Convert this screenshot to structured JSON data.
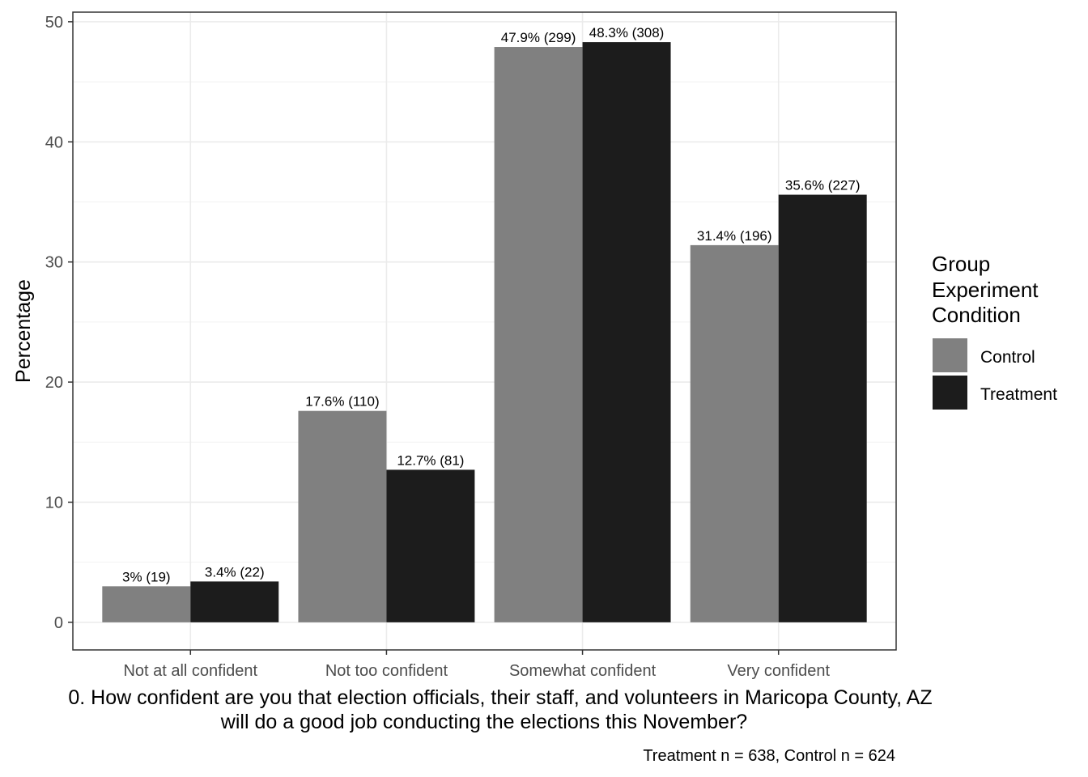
{
  "chart_data": {
    "type": "bar",
    "categories": [
      "Not at all confident",
      "Not too confident",
      "Somewhat confident",
      "Very confident"
    ],
    "series": [
      {
        "name": "Control",
        "color": "#808080",
        "values": [
          3.0,
          17.6,
          47.9,
          31.4
        ],
        "labels": [
          "3% (19)",
          "17.6% (110)",
          "47.9% (299)",
          "31.4% (196)"
        ]
      },
      {
        "name": "Treatment",
        "color": "#1c1c1c",
        "values": [
          3.4,
          12.7,
          48.3,
          35.6
        ],
        "labels": [
          "3.4% (22)",
          "12.7% (81)",
          "48.3% (308)",
          "35.6% (227)"
        ]
      }
    ],
    "title": "",
    "xlabel_lines": [
      "0. How confident are you that election officials, their staff, and volunteers in Maricopa County, AZ",
      "will do a good job conducting the elections this November?"
    ],
    "ylabel": "Percentage",
    "ylim": [
      -2.3,
      50.8
    ],
    "yticks": [
      0,
      10,
      20,
      30,
      40,
      50
    ],
    "grid": true,
    "legend": {
      "position": "right",
      "title_lines": [
        "Group",
        "Experiment",
        "Condition"
      ]
    },
    "caption": "Treatment n = 638, Control n = 624"
  }
}
